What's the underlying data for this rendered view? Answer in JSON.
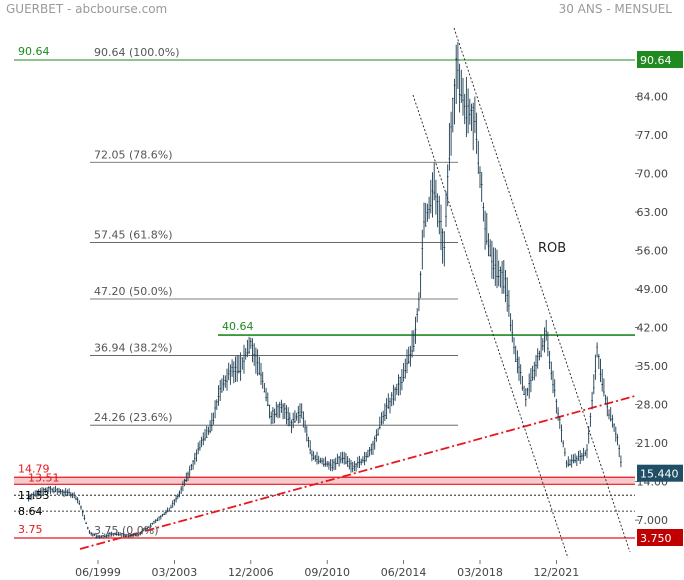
{
  "header": {
    "title": "GUERBET - abcbourse.com",
    "period": "30 ANS - MENSUEL"
  },
  "chart_data": {
    "type": "line",
    "title": "GUERBET - abcbourse.com",
    "subtitle": "30 ANS - MENSUEL",
    "xlabel": "",
    "ylabel": "",
    "ylim": [
      2.2,
      94.5
    ],
    "grid": false,
    "x_ticks": [
      "06/1999",
      "03/2003",
      "12/2006",
      "09/2010",
      "06/2014",
      "03/2018",
      "12/2021"
    ],
    "y_ticks": [
      7.0,
      14.0,
      21.0,
      28.0,
      35.0,
      42.0,
      49.0,
      56.0,
      63.0,
      70.0,
      77.0,
      84.0
    ],
    "last_price": "15.440",
    "colors": {
      "price": "#1c3d52",
      "support": "#e8171d",
      "fib": "#555555",
      "green": "#1f8a1f",
      "badge_blue": "#1f4e66",
      "badge_green": "#1f8a1f",
      "badge_red": "#c00000"
    },
    "series": [
      {
        "values": [
          [
            "1996-01",
            11.2
          ],
          [
            "1997-01",
            12.6
          ],
          [
            "1998-01",
            11.9
          ],
          [
            "1998-06",
            10.9
          ],
          [
            "1999-01",
            4.8
          ],
          [
            "1999-06",
            3.9
          ],
          [
            "2000-01",
            4.4
          ],
          [
            "2000-06",
            4.5
          ],
          [
            "2001-01",
            4.1
          ],
          [
            "2001-06",
            4.4
          ],
          [
            "2001-12",
            5.8
          ],
          [
            "2002-06",
            7.4
          ],
          [
            "2002-12",
            8.9
          ],
          [
            "2003-06",
            11.8
          ],
          [
            "2003-12",
            15.9
          ],
          [
            "2004-06",
            20.5
          ],
          [
            "2004-12",
            23.5
          ],
          [
            "2005-06",
            30.5
          ],
          [
            "2005-12",
            33.8
          ],
          [
            "2006-06",
            34.9
          ],
          [
            "2006-12",
            39.2
          ],
          [
            "2007-06",
            33.5
          ],
          [
            "2007-12",
            26.1
          ],
          [
            "2008-06",
            27.8
          ],
          [
            "2008-12",
            24.5
          ],
          [
            "2009-06",
            26.8
          ],
          [
            "2009-12",
            18.7
          ],
          [
            "2010-06",
            17.6
          ],
          [
            "2010-12",
            16.9
          ],
          [
            "2011-06",
            18.5
          ],
          [
            "2011-12",
            16.6
          ],
          [
            "2012-06",
            17.8
          ],
          [
            "2012-12",
            20.3
          ],
          [
            "2013-06",
            26.1
          ],
          [
            "2013-12",
            29.8
          ],
          [
            "2014-06",
            33.2
          ],
          [
            "2014-12",
            39.6
          ],
          [
            "2015-03",
            46.3
          ],
          [
            "2015-06",
            60.6
          ],
          [
            "2015-12",
            67.3
          ],
          [
            "2016-06",
            56.1
          ],
          [
            "2016-09",
            74.7
          ],
          [
            "2017-01",
            88.8
          ],
          [
            "2017-06",
            82.6
          ],
          [
            "2017-12",
            79.8
          ],
          [
            "2018-06",
            59.7
          ],
          [
            "2018-12",
            52.7
          ],
          [
            "2019-06",
            50.4
          ],
          [
            "2019-12",
            36.8
          ],
          [
            "2020-06",
            29.4
          ],
          [
            "2020-12",
            35.1
          ],
          [
            "2021-06",
            40.6
          ],
          [
            "2021-12",
            28.4
          ],
          [
            "2022-06",
            17.3
          ],
          [
            "2022-12",
            18.0
          ],
          [
            "2023-06",
            19.4
          ],
          [
            "2023-12",
            37.7
          ],
          [
            "2024-06",
            27.4
          ],
          [
            "2024-12",
            22.1
          ],
          [
            "2025-03",
            15.44
          ]
        ]
      }
    ],
    "fib_levels": [
      {
        "label": "90.64  (100.0%)",
        "value": 90.64
      },
      {
        "label": "72.05  (78.6%)",
        "value": 72.05
      },
      {
        "label": "57.45  (61.8%)",
        "value": 57.45
      },
      {
        "label": "47.20  (50.0%)",
        "value": 47.2
      },
      {
        "label": "36.94  (38.2%)",
        "value": 36.94
      },
      {
        "label": "24.26  (23.6%)",
        "value": 24.26
      },
      {
        "label": "3.75  (0.0%)",
        "value": 3.75
      }
    ],
    "horizontal_lines": [
      {
        "label": "90.64",
        "value": 90.64,
        "color": "#1f8a1f"
      },
      {
        "label": "40.64",
        "value": 40.64,
        "color": "#1f8a1f"
      },
      {
        "label": "14.79",
        "value": 14.79,
        "color": "#e8171d"
      },
      {
        "label": "13.51",
        "value": 13.51,
        "color": "#e8171d"
      },
      {
        "label": "11.53",
        "value": 11.53,
        "color": "#000000"
      },
      {
        "label": "8.64",
        "value": 8.64,
        "color": "#000000"
      },
      {
        "label": "3.75",
        "value": 3.75,
        "color": "#e8171d"
      }
    ],
    "annotations": [
      {
        "text": "ROB"
      }
    ],
    "badges": [
      {
        "text": "90.64",
        "value": 90.64,
        "color": "#1f8a1f"
      },
      {
        "text": "15.440",
        "value": 15.44,
        "color": "#1f4e66"
      },
      {
        "text": "3.750",
        "value": 3.75,
        "color": "#c00000"
      }
    ]
  }
}
